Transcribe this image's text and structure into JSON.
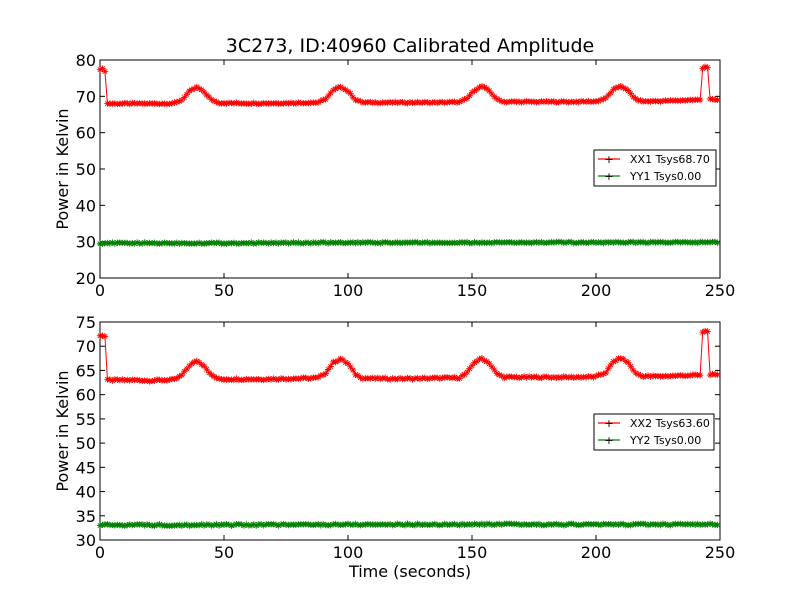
{
  "chart_data": [
    {
      "type": "line",
      "title": "3C273, ID:40960 Calibrated Amplitude",
      "xlabel": "",
      "ylabel": "Power in Kelvin",
      "xlim": [
        0,
        250
      ],
      "ylim": [
        20,
        80
      ],
      "xticks": [
        "0",
        "50",
        "100",
        "150",
        "200",
        "250"
      ],
      "yticks": [
        "20",
        "30",
        "40",
        "50",
        "60",
        "70",
        "80"
      ],
      "grid": false,
      "legend_position": "right",
      "series": [
        {
          "name": "XX1 Tsys68.70",
          "color": "#ff0000",
          "marker": "star",
          "baseline": 68.2,
          "values": [
            [
              0,
              77.5
            ],
            [
              1,
              77.5
            ],
            [
              2,
              77.0
            ],
            [
              3,
              68.0
            ],
            [
              5,
              68.0
            ],
            [
              10,
              68.0
            ],
            [
              15,
              68.0
            ],
            [
              20,
              68.0
            ],
            [
              25,
              68.0
            ],
            [
              30,
              68.1
            ],
            [
              33,
              69.0
            ],
            [
              36,
              71.3
            ],
            [
              39,
              72.5
            ],
            [
              42,
              71.2
            ],
            [
              45,
              69.0
            ],
            [
              48,
              68.2
            ],
            [
              55,
              68.1
            ],
            [
              60,
              68.1
            ],
            [
              70,
              68.1
            ],
            [
              80,
              68.2
            ],
            [
              88,
              68.3
            ],
            [
              91,
              69.3
            ],
            [
              94,
              71.6
            ],
            [
              97,
              72.7
            ],
            [
              100,
              71.4
            ],
            [
              103,
              69.1
            ],
            [
              106,
              68.3
            ],
            [
              115,
              68.3
            ],
            [
              125,
              68.3
            ],
            [
              135,
              68.3
            ],
            [
              145,
              68.4
            ],
            [
              148,
              69.4
            ],
            [
              151,
              71.7
            ],
            [
              154,
              72.8
            ],
            [
              157,
              71.5
            ],
            [
              160,
              69.2
            ],
            [
              163,
              68.5
            ],
            [
              170,
              68.5
            ],
            [
              180,
              68.5
            ],
            [
              190,
              68.5
            ],
            [
              200,
              68.6
            ],
            [
              204,
              69.5
            ],
            [
              207,
              71.8
            ],
            [
              210,
              72.9
            ],
            [
              213,
              71.5
            ],
            [
              216,
              69.2
            ],
            [
              219,
              68.6
            ],
            [
              225,
              68.7
            ],
            [
              232,
              68.8
            ],
            [
              238,
              69.0
            ],
            [
              242,
              69.0
            ],
            [
              243,
              77.8
            ],
            [
              244,
              78.2
            ],
            [
              245,
              78.0
            ],
            [
              246,
              69.2
            ],
            [
              248,
              69.0
            ],
            [
              249,
              69.0
            ]
          ]
        },
        {
          "name": "YY1 Tsys0.00",
          "color": "#008000",
          "marker": "star",
          "baseline": 29.6,
          "values": [
            [
              0,
              29.6
            ],
            [
              50,
              29.6
            ],
            [
              100,
              29.7
            ],
            [
              150,
              29.7
            ],
            [
              200,
              29.8
            ],
            [
              249,
              29.8
            ]
          ]
        }
      ]
    },
    {
      "type": "line",
      "title": "",
      "xlabel": "Time (seconds)",
      "ylabel": "Power in Kelvin",
      "xlim": [
        0,
        250
      ],
      "ylim": [
        30,
        75
      ],
      "xticks": [
        "0",
        "50",
        "100",
        "150",
        "200",
        "250"
      ],
      "yticks": [
        "30",
        "35",
        "40",
        "45",
        "50",
        "55",
        "60",
        "65",
        "70",
        "75"
      ],
      "grid": false,
      "legend_position": "right",
      "series": [
        {
          "name": "XX2 Tsys63.60",
          "color": "#ff0000",
          "marker": "star",
          "baseline": 63.2,
          "values": [
            [
              0,
              72.3
            ],
            [
              1,
              72.2
            ],
            [
              2,
              72.0
            ],
            [
              3,
              63.0
            ],
            [
              5,
              63.0
            ],
            [
              10,
              63.0
            ],
            [
              15,
              63.0
            ],
            [
              20,
              62.9
            ],
            [
              25,
              63.0
            ],
            [
              30,
              63.1
            ],
            [
              33,
              64.0
            ],
            [
              36,
              66.0
            ],
            [
              39,
              67.0
            ],
            [
              42,
              66.0
            ],
            [
              45,
              64.0
            ],
            [
              48,
              63.2
            ],
            [
              55,
              63.2
            ],
            [
              65,
              63.2
            ],
            [
              75,
              63.3
            ],
            [
              85,
              63.4
            ],
            [
              88,
              63.5
            ],
            [
              91,
              64.5
            ],
            [
              94,
              66.6
            ],
            [
              97,
              67.4
            ],
            [
              100,
              66.4
            ],
            [
              103,
              64.2
            ],
            [
              106,
              63.4
            ],
            [
              115,
              63.3
            ],
            [
              125,
              63.3
            ],
            [
              135,
              63.4
            ],
            [
              145,
              63.5
            ],
            [
              148,
              64.5
            ],
            [
              151,
              66.7
            ],
            [
              154,
              67.5
            ],
            [
              157,
              66.5
            ],
            [
              160,
              64.3
            ],
            [
              163,
              63.6
            ],
            [
              170,
              63.6
            ],
            [
              180,
              63.6
            ],
            [
              190,
              63.6
            ],
            [
              200,
              63.7
            ],
            [
              204,
              64.6
            ],
            [
              207,
              66.8
            ],
            [
              210,
              67.6
            ],
            [
              213,
              66.6
            ],
            [
              216,
              64.4
            ],
            [
              219,
              63.8
            ],
            [
              225,
              63.8
            ],
            [
              232,
              63.9
            ],
            [
              238,
              64.0
            ],
            [
              242,
              64.0
            ],
            [
              243,
              72.8
            ],
            [
              244,
              73.2
            ],
            [
              245,
              73.0
            ],
            [
              246,
              64.2
            ],
            [
              248,
              64.0
            ],
            [
              249,
              64.0
            ]
          ]
        },
        {
          "name": "YY2 Tsys0.00",
          "color": "#008000",
          "marker": "star",
          "baseline": 33.1,
          "values": [
            [
              0,
              33.1
            ],
            [
              50,
              33.1
            ],
            [
              100,
              33.2
            ],
            [
              150,
              33.2
            ],
            [
              200,
              33.2
            ],
            [
              249,
              33.2
            ]
          ]
        }
      ]
    }
  ]
}
